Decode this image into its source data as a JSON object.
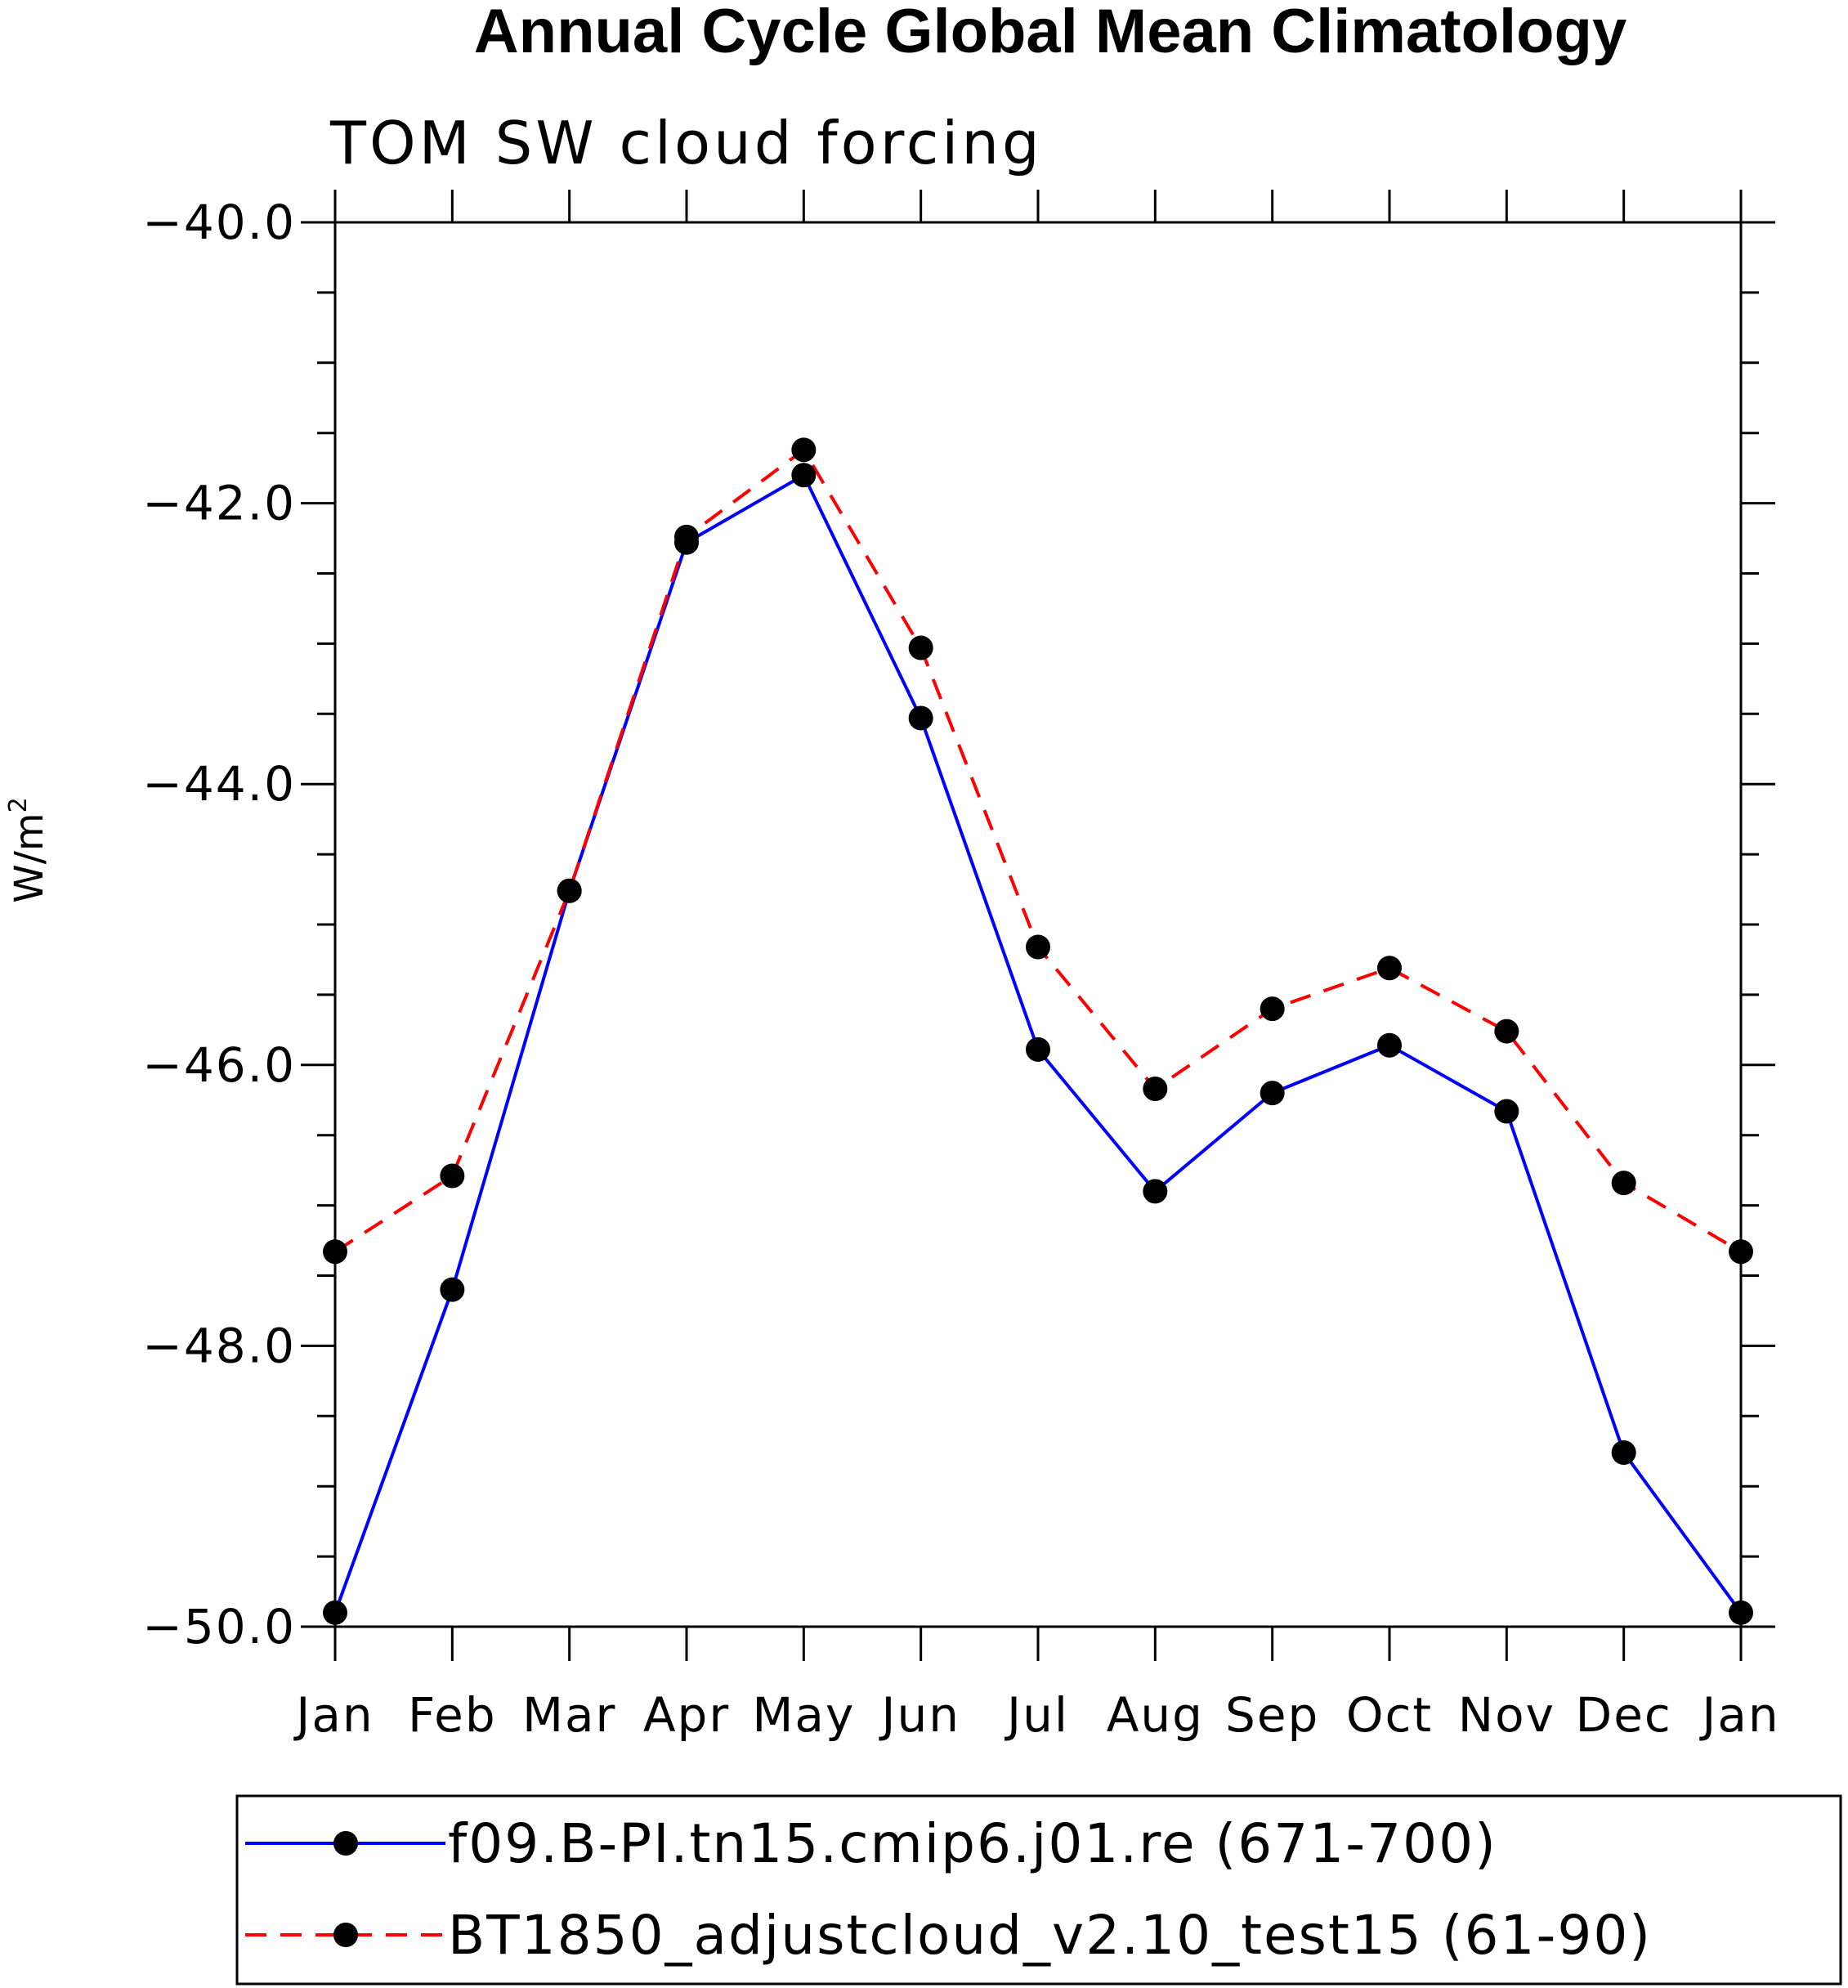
{
  "chart_data": {
    "type": "line",
    "title": "Annual Cycle Global Mean Climatology",
    "subtitle": "TOM SW cloud forcing",
    "ylabel": "W/m",
    "ylabel_superscript": "2",
    "xlabel": "",
    "categories": [
      "Jan",
      "Feb",
      "Mar",
      "Apr",
      "May",
      "Jun",
      "Jul",
      "Aug",
      "Sep",
      "Oct",
      "Nov",
      "Dec",
      "Jan"
    ],
    "ylim": [
      -50.0,
      -40.0
    ],
    "yticks": [
      "-40.0",
      "-42.0",
      "-44.0",
      "-46.0",
      "-48.0",
      "-50.0"
    ],
    "grid": false,
    "legend_position": "bottom",
    "series": [
      {
        "name": "f09.B-PI.tn15.cmip6.j01.re (671-700)",
        "color": "#0000ff",
        "line_style": "solid",
        "marker": "filled-circle",
        "values": [
          -49.9,
          -47.6,
          -44.76,
          -42.28,
          -41.8,
          -43.53,
          -45.89,
          -46.9,
          -46.2,
          -45.86,
          -46.33,
          -48.76,
          -49.9
        ]
      },
      {
        "name": "BT1850_adjustcloud_v2.10_test15 (61-90)",
        "color": "#ff0000",
        "line_style": "dashed",
        "marker": "filled-circle",
        "values": [
          -47.33,
          -46.79,
          -44.76,
          -42.24,
          -41.62,
          -43.03,
          -45.16,
          -46.17,
          -45.6,
          -45.31,
          -45.76,
          -46.84,
          -47.33
        ]
      }
    ]
  }
}
